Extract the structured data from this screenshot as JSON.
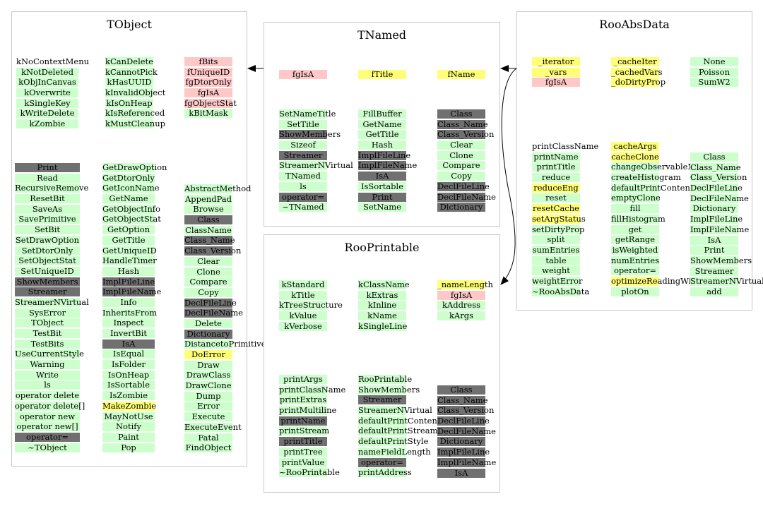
{
  "classes": {
    "tobject": {
      "title": "TObject",
      "groups": [
        {
          "col": 0,
          "rows": [
            [
              "kNoContextMenu",
              "w"
            ],
            [
              "kNotDeleted",
              "g"
            ],
            [
              "kObjInCanvas",
              "g"
            ],
            [
              "kOverwrite",
              "g"
            ],
            [
              "kSingleKey",
              "g"
            ],
            [
              "kWriteDelete",
              "g"
            ],
            [
              "kZombie",
              "g"
            ]
          ]
        },
        {
          "col": 1,
          "rows": [
            [
              "kCanDelete",
              "g"
            ],
            [
              "kCannotPick",
              "g"
            ],
            [
              "kHasUUID",
              "g"
            ],
            [
              "kInvalidObject",
              "g"
            ],
            [
              "kIsOnHeap",
              "g"
            ],
            [
              "kIsReferenced",
              "g"
            ],
            [
              "kMustCleanup",
              "g"
            ]
          ]
        },
        {
          "col": 2,
          "rows": [
            [
              "fBits",
              "p"
            ],
            [
              "fUniqueID",
              "p"
            ],
            [
              "fgDtorOnly",
              "p"
            ],
            [
              "fgIsA",
              "p"
            ],
            [
              "fgObjectStat",
              "p"
            ],
            [
              "kBitMask",
              "g"
            ]
          ]
        },
        {
          "col": 0,
          "rows": [
            [
              "Print",
              "d"
            ],
            [
              "Read",
              "g"
            ],
            [
              "RecursiveRemove",
              "g"
            ],
            [
              "ResetBit",
              "g"
            ],
            [
              "SaveAs",
              "g"
            ],
            [
              "SavePrimitive",
              "g"
            ],
            [
              "SetBit",
              "g"
            ],
            [
              "SetDrawOption",
              "g"
            ],
            [
              "SetDtorOnly",
              "g"
            ],
            [
              "SetObjectStat",
              "g"
            ],
            [
              "SetUniqueID",
              "g"
            ],
            [
              "ShowMembers",
              "d"
            ],
            [
              "Streamer",
              "d"
            ],
            [
              "StreamerNVirtual",
              "g"
            ],
            [
              "SysError",
              "g"
            ],
            [
              "TObject",
              "g"
            ],
            [
              "TestBit",
              "g"
            ],
            [
              "TestBits",
              "g"
            ],
            [
              "UseCurrentStyle",
              "g"
            ],
            [
              "Warning",
              "g"
            ],
            [
              "Write",
              "g"
            ],
            [
              "ls",
              "g"
            ],
            [
              "operator delete",
              "g"
            ],
            [
              "operator delete[]",
              "g"
            ],
            [
              "operator new",
              "g"
            ],
            [
              "operator new[]",
              "g"
            ],
            [
              "operator=",
              "d"
            ],
            [
              "~TObject",
              "g"
            ]
          ]
        },
        {
          "col": 1,
          "rows": [
            [
              "GetDrawOption",
              "g"
            ],
            [
              "GetDtorOnly",
              "g"
            ],
            [
              "GetIconName",
              "g"
            ],
            [
              "GetName",
              "g"
            ],
            [
              "GetObjectInfo",
              "g"
            ],
            [
              "GetObjectStat",
              "g"
            ],
            [
              "GetOption",
              "g"
            ],
            [
              "GetTitle",
              "g"
            ],
            [
              "GetUniqueID",
              "g"
            ],
            [
              "HandleTimer",
              "g"
            ],
            [
              "Hash",
              "g"
            ],
            [
              "ImplFileLine",
              "d"
            ],
            [
              "ImplFileName",
              "d"
            ],
            [
              "Info",
              "g"
            ],
            [
              "InheritsFrom",
              "g"
            ],
            [
              "Inspect",
              "g"
            ],
            [
              "InvertBit",
              "g"
            ],
            [
              "IsA",
              "d"
            ],
            [
              "IsEqual",
              "g"
            ],
            [
              "IsFolder",
              "g"
            ],
            [
              "IsOnHeap",
              "g"
            ],
            [
              "IsSortable",
              "g"
            ],
            [
              "IsZombie",
              "g"
            ],
            [
              "MakeZombie",
              "y"
            ],
            [
              "MayNotUse",
              "g"
            ],
            [
              "Notify",
              "g"
            ],
            [
              "Paint",
              "g"
            ],
            [
              "Pop",
              "g"
            ]
          ]
        },
        {
          "col": 2,
          "rows": [
            [
              "AbstractMethod",
              "g"
            ],
            [
              "AppendPad",
              "g"
            ],
            [
              "Browse",
              "g"
            ],
            [
              "Class",
              "d"
            ],
            [
              "ClassName",
              "g"
            ],
            [
              "Class_Name",
              "d"
            ],
            [
              "Class_Version",
              "d"
            ],
            [
              "Clear",
              "g"
            ],
            [
              "Clone",
              "g"
            ],
            [
              "Compare",
              "g"
            ],
            [
              "Copy",
              "g"
            ],
            [
              "DeclFileLine",
              "d"
            ],
            [
              "DeclFileName",
              "d"
            ],
            [
              "Delete",
              "g"
            ],
            [
              "Dictionary",
              "d"
            ],
            [
              "DistancetoPrimitive",
              "g"
            ],
            [
              "DoError",
              "y"
            ],
            [
              "Draw",
              "g"
            ],
            [
              "DrawClass",
              "g"
            ],
            [
              "DrawClone",
              "g"
            ],
            [
              "Dump",
              "g"
            ],
            [
              "Error",
              "g"
            ],
            [
              "Execute",
              "g"
            ],
            [
              "ExecuteEvent",
              "g"
            ],
            [
              "Fatal",
              "g"
            ],
            [
              "FindObject",
              "g"
            ]
          ]
        }
      ]
    },
    "tnamed": {
      "title": "TNamed",
      "groups": [
        {
          "col": 0,
          "rows": [
            [
              "fgIsA",
              "p"
            ]
          ]
        },
        {
          "col": 1,
          "rows": [
            [
              "fTitle",
              "y"
            ]
          ]
        },
        {
          "col": 2,
          "rows": [
            [
              "fName",
              "y"
            ]
          ]
        },
        {
          "col": 0,
          "rows": [
            [
              "SetNameTitle",
              "g"
            ],
            [
              "SetTitle",
              "g"
            ],
            [
              "ShowMembers",
              "d"
            ],
            [
              "Sizeof",
              "g"
            ],
            [
              "Streamer",
              "d"
            ],
            [
              "StreamerNVirtual",
              "g"
            ],
            [
              "TNamed",
              "g"
            ],
            [
              "ls",
              "g"
            ],
            [
              "operator=",
              "d"
            ],
            [
              "~TNamed",
              "g"
            ]
          ]
        },
        {
          "col": 1,
          "rows": [
            [
              "FillBuffer",
              "g"
            ],
            [
              "GetName",
              "g"
            ],
            [
              "GetTitle",
              "g"
            ],
            [
              "Hash",
              "g"
            ],
            [
              "ImplFileLine",
              "d"
            ],
            [
              "ImplFileName",
              "d"
            ],
            [
              "IsA",
              "d"
            ],
            [
              "IsSortable",
              "g"
            ],
            [
              "Print",
              "d"
            ],
            [
              "SetName",
              "g"
            ]
          ]
        },
        {
          "col": 2,
          "rows": [
            [
              "Class",
              "d"
            ],
            [
              "Class_Name",
              "d"
            ],
            [
              "Class_Version",
              "d"
            ],
            [
              "Clear",
              "g"
            ],
            [
              "Clone",
              "g"
            ],
            [
              "Compare",
              "g"
            ],
            [
              "Copy",
              "g"
            ],
            [
              "DeclFileLine",
              "d"
            ],
            [
              "DeclFileName",
              "d"
            ],
            [
              "Dictionary",
              "d"
            ]
          ]
        }
      ]
    },
    "rooabsdata": {
      "title": "RooAbsData",
      "groups": [
        {
          "col": 0,
          "rows": [
            [
              "_iterator",
              "y"
            ],
            [
              "_vars",
              "y"
            ],
            [
              "fgIsA",
              "p"
            ]
          ]
        },
        {
          "col": 1,
          "rows": [
            [
              "_cacheIter",
              "y"
            ],
            [
              "_cachedVars",
              "y"
            ],
            [
              "_doDirtyProp",
              "y"
            ]
          ]
        },
        {
          "col": 2,
          "rows": [
            [
              "None",
              "g"
            ],
            [
              "Poisson",
              "g"
            ],
            [
              "SumW2",
              "g"
            ]
          ]
        },
        {
          "col": 0,
          "rows": [
            [
              "printClassName",
              "w"
            ],
            [
              "printName",
              "g"
            ],
            [
              "printTitle",
              "g"
            ],
            [
              "reduce",
              "g"
            ],
            [
              "reduceEng",
              "y"
            ],
            [
              "reset",
              "g"
            ],
            [
              "resetCache",
              "y"
            ],
            [
              "setArgStatus",
              "y"
            ],
            [
              "setDirtyProp",
              "g"
            ],
            [
              "split",
              "g"
            ],
            [
              "sumEntries",
              "g"
            ],
            [
              "table",
              "g"
            ],
            [
              "weight",
              "g"
            ],
            [
              "weightError",
              "g"
            ],
            [
              "~RooAbsData",
              "g"
            ]
          ]
        },
        {
          "col": 1,
          "rows": [
            [
              "cacheArgs",
              "y"
            ],
            [
              "cacheClone",
              "y"
            ],
            [
              "changeObservableName",
              "g"
            ],
            [
              "createHistogram",
              "g"
            ],
            [
              "defaultPrintContents",
              "g"
            ],
            [
              "emptyClone",
              "g"
            ],
            [
              "fill",
              "g"
            ],
            [
              "fillHistogram",
              "g"
            ],
            [
              "get",
              "g"
            ],
            [
              "getRange",
              "g"
            ],
            [
              "isWeighted",
              "g"
            ],
            [
              "numEntries",
              "g"
            ],
            [
              "operator=",
              "g"
            ],
            [
              "optimizeReadingWithCaching",
              "y"
            ],
            [
              "plotOn",
              "g"
            ]
          ]
        },
        {
          "col": 2,
          "rows": [
            [
              "Class",
              "g"
            ],
            [
              "Class_Name",
              "g"
            ],
            [
              "Class_Version",
              "g"
            ],
            [
              "DeclFileLine",
              "g"
            ],
            [
              "DeclFileName",
              "g"
            ],
            [
              "Dictionary",
              "g"
            ],
            [
              "ImplFileLine",
              "g"
            ],
            [
              "ImplFileName",
              "g"
            ],
            [
              "IsA",
              "g"
            ],
            [
              "Print",
              "g"
            ],
            [
              "ShowMembers",
              "g"
            ],
            [
              "Streamer",
              "g"
            ],
            [
              "StreamerNVirtual",
              "g"
            ],
            [
              "add",
              "g"
            ]
          ]
        }
      ]
    },
    "rooprintable": {
      "title": "RooPrintable",
      "groups": [
        {
          "col": 0,
          "rows": [
            [
              "kStandard",
              "g"
            ],
            [
              "kTitle",
              "g"
            ],
            [
              "kTreeStructure",
              "g"
            ],
            [
              "kValue",
              "g"
            ],
            [
              "kVerbose",
              "g"
            ]
          ]
        },
        {
          "col": 1,
          "rows": [
            [
              "kClassName",
              "g"
            ],
            [
              "kExtras",
              "g"
            ],
            [
              "kInline",
              "g"
            ],
            [
              "kName",
              "g"
            ],
            [
              "kSingleLine",
              "g"
            ]
          ]
        },
        {
          "col": 2,
          "rows": [
            [
              "_nameLength",
              "y"
            ],
            [
              "fgIsA",
              "p"
            ],
            [
              "kAddress",
              "g"
            ],
            [
              "kArgs",
              "g"
            ]
          ]
        },
        {
          "col": 0,
          "rows": [
            [
              "printArgs",
              "g"
            ],
            [
              "printClassName",
              "g"
            ],
            [
              "printExtras",
              "g"
            ],
            [
              "printMultiline",
              "g"
            ],
            [
              "printName",
              "d"
            ],
            [
              "printStream",
              "g"
            ],
            [
              "printTitle",
              "d"
            ],
            [
              "printTree",
              "g"
            ],
            [
              "printValue",
              "g"
            ],
            [
              "~RooPrintable",
              "g"
            ]
          ]
        },
        {
          "col": 1,
          "rows": [
            [
              "RooPrintable",
              "g"
            ],
            [
              "ShowMembers",
              "g"
            ],
            [
              "Streamer",
              "d"
            ],
            [
              "StreamerNVirtual",
              "g"
            ],
            [
              "defaultPrintContents",
              "g"
            ],
            [
              "defaultPrintStream",
              "g"
            ],
            [
              "defaultPrintStyle",
              "g"
            ],
            [
              "nameFieldLength",
              "g"
            ],
            [
              "operator=",
              "d"
            ],
            [
              "printAddress",
              "g"
            ]
          ]
        },
        {
          "col": 2,
          "rows": [
            [
              "Class",
              "d"
            ],
            [
              "Class_Name",
              "d"
            ],
            [
              "Class_Version",
              "d"
            ],
            [
              "DeclFileLine",
              "d"
            ],
            [
              "DeclFileName",
              "d"
            ],
            [
              "Dictionary",
              "d"
            ],
            [
              "ImplFileLine",
              "d"
            ],
            [
              "ImplFileName",
              "d"
            ],
            [
              "IsA",
              "d"
            ]
          ]
        }
      ]
    }
  }
}
